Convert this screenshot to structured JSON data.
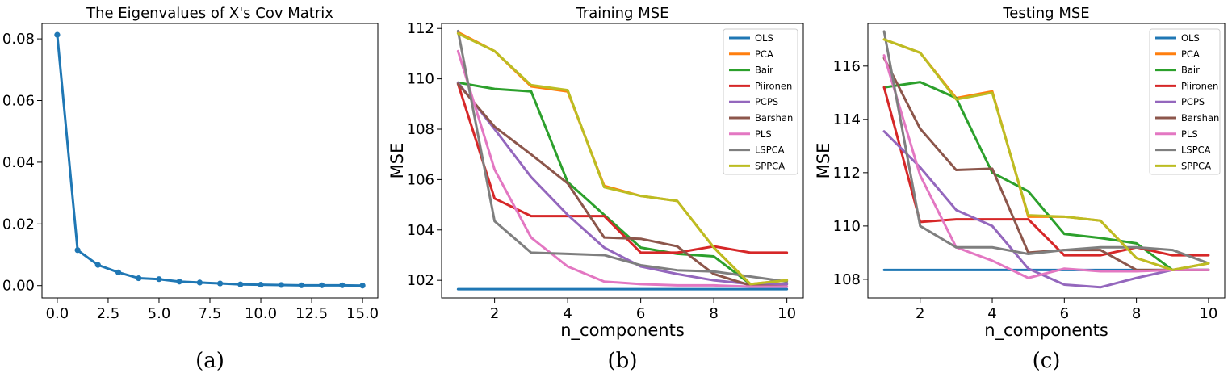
{
  "chart_data": [
    {
      "type": "line",
      "title": "The Eigenvalues of X's Cov Matrix",
      "caption": "(a)",
      "xlabel": "",
      "ylabel": "",
      "xlim": [
        -0.75,
        15.75
      ],
      "ylim": [
        -0.004,
        0.085
      ],
      "xticks": [
        0.0,
        2.5,
        5.0,
        7.5,
        10.0,
        12.5,
        15.0
      ],
      "xtick_labels": [
        "0.0",
        "2.5",
        "5.0",
        "7.5",
        "10.0",
        "12.5",
        "15.0"
      ],
      "yticks": [
        0.0,
        0.02,
        0.04,
        0.06,
        0.08
      ],
      "ytick_labels": [
        "0.00",
        "0.02",
        "0.04",
        "0.06",
        "0.08"
      ],
      "grid": false,
      "markers": true,
      "series": [
        {
          "color": "#1f77b4",
          "x": [
            0,
            1,
            2,
            3,
            4,
            5,
            6,
            7,
            8,
            9,
            10,
            11,
            12,
            13,
            14,
            15
          ],
          "values": [
            0.0813,
            0.0115,
            0.0067,
            0.0043,
            0.0024,
            0.0021,
            0.0013,
            0.001,
            0.0007,
            0.0004,
            0.0003,
            0.0002,
            0.0001,
            0.0001,
            0.0001,
            0.0
          ]
        }
      ]
    },
    {
      "type": "line",
      "title": "Training MSE",
      "caption": "(b)",
      "xlabel": "n_components",
      "ylabel": "MSE",
      "xlim": [
        0.55,
        10.45
      ],
      "ylim": [
        101.3,
        112.2
      ],
      "xticks": [
        2,
        4,
        6,
        8,
        10
      ],
      "xtick_labels": [
        "2",
        "4",
        "6",
        "8",
        "10"
      ],
      "yticks": [
        102,
        104,
        106,
        108,
        110,
        112
      ],
      "ytick_labels": [
        "102",
        "104",
        "106",
        "108",
        "110",
        "112"
      ],
      "grid": false,
      "legend_position": "top-right",
      "x": [
        1,
        2,
        3,
        4,
        5,
        6,
        7,
        8,
        9,
        10
      ],
      "series": [
        {
          "name": "OLS",
          "color": "#1f77b4",
          "values": [
            101.65,
            101.65,
            101.65,
            101.65,
            101.65,
            101.65,
            101.65,
            101.65,
            101.65,
            101.65
          ]
        },
        {
          "name": "PCA",
          "color": "#ff7f0e",
          "values": [
            111.85,
            111.1,
            109.7,
            109.5,
            105.75,
            105.35,
            105.15,
            103.3,
            101.85,
            102.0
          ]
        },
        {
          "name": "Bair",
          "color": "#2ca02c",
          "values": [
            109.85,
            109.6,
            109.5,
            105.9,
            104.6,
            103.3,
            103.05,
            102.95,
            101.85,
            101.85
          ]
        },
        {
          "name": "Piironen",
          "color": "#d62728",
          "values": [
            109.8,
            105.25,
            104.55,
            104.55,
            104.55,
            103.1,
            103.1,
            103.35,
            103.1,
            103.1
          ]
        },
        {
          "name": "PCPS",
          "color": "#9467bd",
          "values": [
            109.85,
            108.0,
            106.1,
            104.6,
            103.3,
            102.55,
            102.25,
            102.0,
            101.85,
            101.85
          ]
        },
        {
          "name": "Barshan",
          "color": "#8c564b",
          "values": [
            109.8,
            108.1,
            107.0,
            105.85,
            103.7,
            103.65,
            103.35,
            102.25,
            101.8,
            101.75
          ]
        },
        {
          "name": "PLS",
          "color": "#e377c2",
          "values": [
            111.1,
            106.4,
            103.7,
            102.55,
            101.95,
            101.85,
            101.8,
            101.8,
            101.75,
            101.75
          ]
        },
        {
          "name": "LSPCA",
          "color": "#7f7f7f",
          "values": [
            111.9,
            104.35,
            103.1,
            103.05,
            103.0,
            102.6,
            102.4,
            102.35,
            102.15,
            101.95
          ]
        },
        {
          "name": "SPPCA",
          "color": "#bcbd22",
          "values": [
            111.8,
            111.1,
            109.75,
            109.55,
            105.7,
            105.35,
            105.15,
            103.3,
            101.85,
            102.0
          ]
        }
      ]
    },
    {
      "type": "line",
      "title": "Testing MSE",
      "caption": "(c)",
      "xlabel": "n_components",
      "ylabel": "MSE",
      "xlim": [
        0.55,
        10.45
      ],
      "ylim": [
        107.3,
        117.6
      ],
      "xticks": [
        2,
        4,
        6,
        8,
        10
      ],
      "xtick_labels": [
        "2",
        "4",
        "6",
        "8",
        "10"
      ],
      "yticks": [
        108,
        110,
        112,
        114,
        116
      ],
      "ytick_labels": [
        "108",
        "110",
        "112",
        "114",
        "116"
      ],
      "grid": false,
      "legend_position": "top-right",
      "x": [
        1,
        2,
        3,
        4,
        5,
        6,
        7,
        8,
        9,
        10
      ],
      "series": [
        {
          "name": "OLS",
          "color": "#1f77b4",
          "values": [
            108.35,
            108.35,
            108.35,
            108.35,
            108.35,
            108.35,
            108.35,
            108.35,
            108.35,
            108.35
          ]
        },
        {
          "name": "PCA",
          "color": "#ff7f0e",
          "values": [
            117.0,
            116.5,
            114.8,
            115.05,
            110.35,
            110.35,
            110.2,
            108.8,
            108.35,
            108.6
          ]
        },
        {
          "name": "Bair",
          "color": "#2ca02c",
          "values": [
            115.2,
            115.4,
            114.8,
            112.0,
            111.3,
            109.7,
            109.55,
            109.35,
            108.35,
            108.35
          ]
        },
        {
          "name": "Piironen",
          "color": "#d62728",
          "values": [
            115.2,
            110.15,
            110.25,
            110.25,
            110.25,
            108.9,
            108.9,
            109.2,
            108.9,
            108.9
          ]
        },
        {
          "name": "PCPS",
          "color": "#9467bd",
          "values": [
            113.55,
            112.2,
            110.6,
            110.0,
            108.4,
            107.8,
            107.7,
            108.05,
            108.35,
            108.35
          ]
        },
        {
          "name": "Barshan",
          "color": "#8c564b",
          "values": [
            116.3,
            113.65,
            112.1,
            112.15,
            109.0,
            109.1,
            109.1,
            108.35,
            108.35,
            108.35
          ]
        },
        {
          "name": "PLS",
          "color": "#e377c2",
          "values": [
            116.4,
            111.9,
            109.2,
            108.7,
            108.05,
            108.4,
            108.3,
            108.3,
            108.35,
            108.35
          ]
        },
        {
          "name": "LSPCA",
          "color": "#7f7f7f",
          "values": [
            117.3,
            110.0,
            109.2,
            109.2,
            108.95,
            109.1,
            109.2,
            109.2,
            109.1,
            108.6
          ]
        },
        {
          "name": "SPPCA",
          "color": "#bcbd22",
          "values": [
            117.0,
            116.5,
            114.75,
            115.0,
            110.4,
            110.35,
            110.2,
            108.8,
            108.35,
            108.6
          ]
        }
      ]
    }
  ]
}
